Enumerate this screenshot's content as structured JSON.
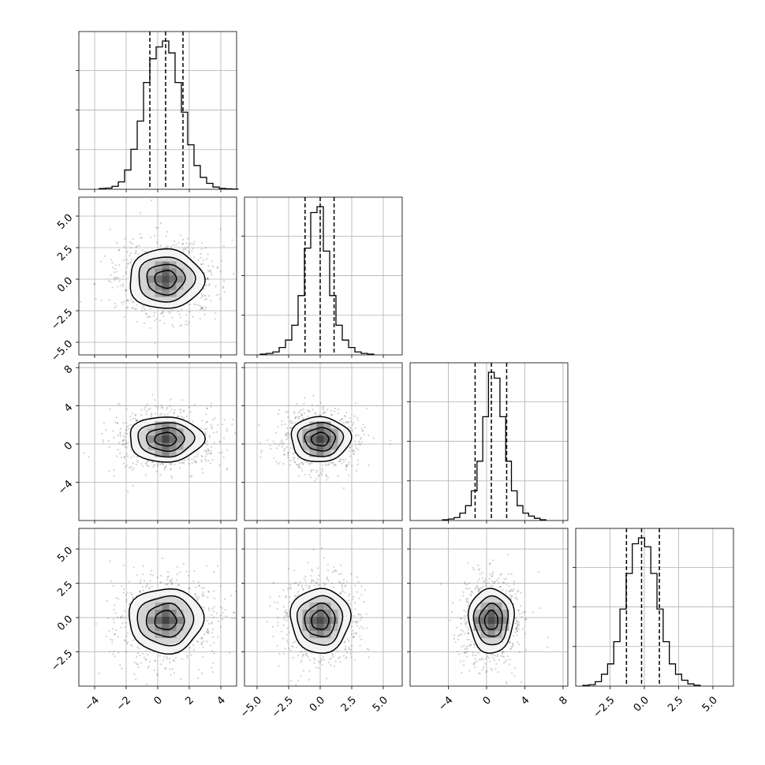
{
  "chart_data": {
    "type": "corner",
    "layout": "4x4 lower-triangular corner plot",
    "grid": true,
    "title": "",
    "parameters": [
      {
        "label": "",
        "range": [
          -5,
          5
        ],
        "quantiles": [
          -0.5,
          0.5,
          1.6
        ],
        "ticks": [
          -4,
          -2,
          0,
          2,
          4
        ],
        "tick_labels": [
          "−4",
          "−2",
          "0",
          "2",
          "4"
        ],
        "hist_bin_width": 0.4,
        "hist_shape": [
          0.005,
          0.008,
          0.02,
          0.05,
          0.13,
          0.27,
          0.46,
          0.72,
          0.88,
          0.96,
          1.0,
          0.92,
          0.72,
          0.52,
          0.3,
          0.16,
          0.08,
          0.04,
          0.015,
          0.006,
          0.003,
          0.001
        ]
      },
      {
        "label": "",
        "range": [
          -6,
          6.5
        ],
        "quantiles": [
          -1.2,
          0.0,
          1.1
        ],
        "ticks": [
          -5,
          -2.5,
          0,
          2.5,
          5
        ],
        "tick_labels": [
          "−5.0",
          "−2.5",
          "0.0",
          "2.5",
          "5.0"
        ],
        "hist_bin_width": 0.5,
        "hist_shape": [
          0.005,
          0.01,
          0.02,
          0.05,
          0.1,
          0.2,
          0.4,
          0.72,
          0.96,
          1.0,
          0.7,
          0.4,
          0.2,
          0.1,
          0.05,
          0.02,
          0.01,
          0.005
        ]
      },
      {
        "label": "",
        "range": [
          -8,
          8.5
        ],
        "quantiles": [
          -1.2,
          0.5,
          2.1
        ],
        "ticks": [
          -4,
          0,
          4,
          8
        ],
        "tick_labels": [
          "−4",
          "0",
          "4",
          "8"
        ],
        "y_tick_labels": [
          "−4",
          "0",
          "4",
          "8"
        ],
        "hist_bin_width": 0.6,
        "hist_shape": [
          0.005,
          0.01,
          0.02,
          0.05,
          0.1,
          0.2,
          0.4,
          0.7,
          1.0,
          0.96,
          0.7,
          0.4,
          0.2,
          0.1,
          0.05,
          0.03,
          0.015,
          0.005
        ]
      },
      {
        "label": "",
        "range": [
          -5,
          6.5
        ],
        "quantiles": [
          -1.3,
          -0.2,
          1.1
        ],
        "ticks": [
          -2.5,
          0,
          2.5,
          5
        ],
        "tick_labels": [
          "−2.5",
          "0.0",
          "2.5",
          "5.0"
        ],
        "y_tick_labels": [
          "−2.5",
          "0.0",
          "2.5",
          "5.0"
        ],
        "hist_bin_width": 0.45,
        "hist_shape": [
          0.005,
          0.01,
          0.03,
          0.08,
          0.15,
          0.3,
          0.52,
          0.76,
          0.96,
          1.0,
          0.94,
          0.76,
          0.52,
          0.3,
          0.15,
          0.08,
          0.04,
          0.015,
          0.006
        ]
      }
    ],
    "panels_2d": [
      {
        "row": 1,
        "col": 0,
        "center": [
          0.5,
          0.0
        ]
      },
      {
        "row": 2,
        "col": 0,
        "center": [
          0.5,
          0.5
        ]
      },
      {
        "row": 2,
        "col": 1,
        "center": [
          0.0,
          0.5
        ]
      },
      {
        "row": 3,
        "col": 0,
        "center": [
          0.5,
          -0.2
        ]
      },
      {
        "row": 3,
        "col": 1,
        "center": [
          0.0,
          -0.2
        ]
      },
      {
        "row": 3,
        "col": 2,
        "center": [
          0.5,
          -0.2
        ]
      }
    ]
  }
}
